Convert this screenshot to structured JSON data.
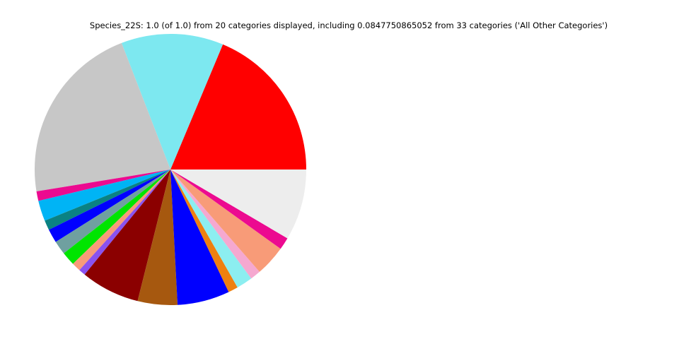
{
  "figure_title": "Species_22S: 1.0 (of 1.0) from 20 categories displayed, including 0.0847750865052 from 33 categories ('All Other Categories')",
  "chart_data": {
    "type": "pie",
    "title": "Species_22S: 1.0 (of 1.0) from 20 categories displayed, including 0.0847750865052 from 33 categories ('All Other Categories')",
    "total_shown": 1.0,
    "total_of": 1.0,
    "categories_displayed": 20,
    "all_other_categories": {
      "label": "All Other Categories",
      "fraction": 0.0847750865052,
      "n_categories": 33
    },
    "legend_position": "none",
    "data_labels": "none",
    "start_angle_deg": 0,
    "direction": "counterclockwise",
    "slices": [
      {
        "label": "category-1-red",
        "color": "#FF0000",
        "angle_deg": 67.3,
        "fraction": 0.187
      },
      {
        "label": "category-2-light-cyan",
        "color": "#7DE8F0",
        "angle_deg": 43.8,
        "fraction": 0.122
      },
      {
        "label": "category-3-silver",
        "color": "#C7C7C7",
        "angle_deg": 78.2,
        "fraction": 0.217
      },
      {
        "label": "category-4-magenta",
        "color": "#EC0A90",
        "angle_deg": 4.1,
        "fraction": 0.011
      },
      {
        "label": "category-5-deep-sky-blue",
        "color": "#00B4F5",
        "angle_deg": 8.8,
        "fraction": 0.024
      },
      {
        "label": "category-6-teal",
        "color": "#0A8283",
        "angle_deg": 4.2,
        "fraction": 0.012
      },
      {
        "label": "category-7-blue",
        "color": "#0000FF",
        "angle_deg": 5.9,
        "fraction": 0.016
      },
      {
        "label": "category-8-cadet-blue",
        "color": "#6FA0A0",
        "angle_deg": 5.9,
        "fraction": 0.016
      },
      {
        "label": "category-9-green",
        "color": "#00E500",
        "angle_deg": 5.9,
        "fraction": 0.016
      },
      {
        "label": "category-10-salmon",
        "color": "#F89B78",
        "angle_deg": 3.8,
        "fraction": 0.011
      },
      {
        "label": "category-11-purple",
        "color": "#8A52F0",
        "angle_deg": 2.9,
        "fraction": 0.008
      },
      {
        "label": "category-12-dark-red",
        "color": "#8B0000",
        "angle_deg": 25.2,
        "fraction": 0.07
      },
      {
        "label": "category-13-sienna",
        "color": "#A6580F",
        "angle_deg": 17.0,
        "fraction": 0.047
      },
      {
        "label": "category-14-blue",
        "color": "#0000FF",
        "angle_deg": 22.4,
        "fraction": 0.062
      },
      {
        "label": "category-15-orange",
        "color": "#EF800F",
        "angle_deg": 4.2,
        "fraction": 0.012
      },
      {
        "label": "category-16-pale-turquoise",
        "color": "#8CEEF0",
        "angle_deg": 6.9,
        "fraction": 0.019
      },
      {
        "label": "category-17-pink",
        "color": "#F5A8D0",
        "angle_deg": 4.5,
        "fraction": 0.013
      },
      {
        "label": "category-18-salmon",
        "color": "#F89B78",
        "angle_deg": 13.2,
        "fraction": 0.037
      },
      {
        "label": "category-19-magenta",
        "color": "#EC0A90",
        "angle_deg": 5.3,
        "fraction": 0.015
      },
      {
        "label": "All Other Categories",
        "color": "#EDEDED",
        "angle_deg": 30.5,
        "fraction": 0.0848
      }
    ]
  }
}
